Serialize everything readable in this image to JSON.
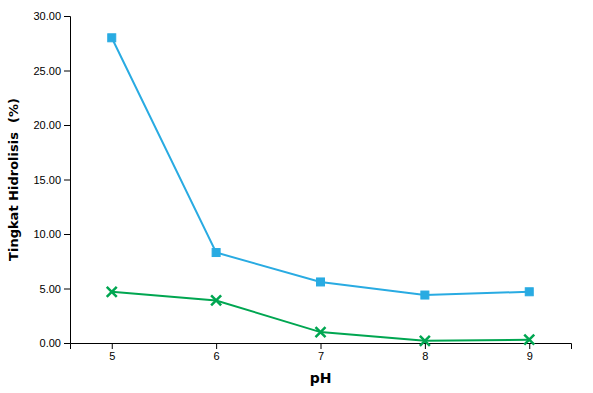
{
  "chart_data": {
    "type": "line",
    "xlabel": "pH",
    "ylabel": "Tingkat Hidrolisis  (%)",
    "x": [
      5,
      6,
      7,
      8,
      9
    ],
    "xlim": [
      4.6,
      9.4
    ],
    "xticks": [
      5,
      6,
      7,
      8,
      9
    ],
    "ylim": [
      0.0,
      30.0
    ],
    "yticks": [
      {
        "value": 0.0,
        "label": "0.00"
      },
      {
        "value": 5.0,
        "label": "5.00"
      },
      {
        "value": 10.0,
        "label": "10.00"
      },
      {
        "value": 15.0,
        "label": "15.00"
      },
      {
        "value": 20.0,
        "label": "20.00"
      },
      {
        "value": 25.0,
        "label": "25.00"
      },
      {
        "value": 30.0,
        "label": "30.00"
      }
    ],
    "grid": false,
    "series": [
      {
        "color": "#29ABE2",
        "marker": "square",
        "values": [
          28.0,
          8.3,
          5.6,
          4.4,
          4.7
        ]
      },
      {
        "color": "#00A651",
        "marker": "x",
        "values": [
          4.7,
          3.9,
          1.0,
          0.2,
          0.3
        ]
      }
    ]
  }
}
